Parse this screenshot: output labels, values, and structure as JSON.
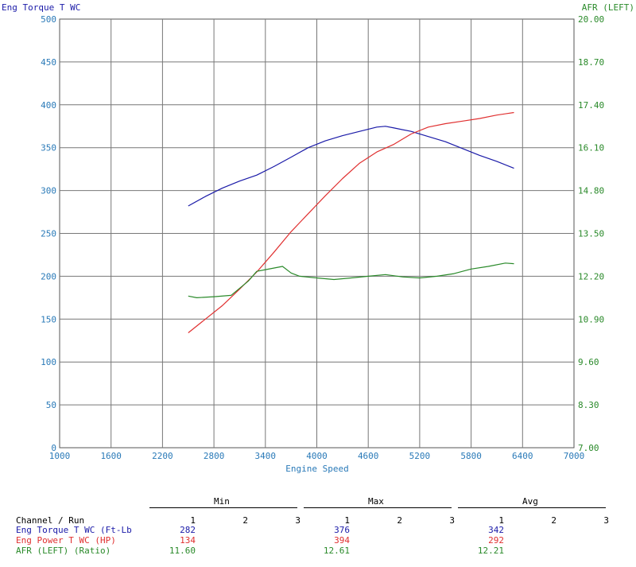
{
  "chart_data": {
    "type": "line",
    "title": "",
    "xlabel": "Engine Speed",
    "ylabel_left": "Eng Torque T WC",
    "ylabel_right": "AFR (LEFT)",
    "xlim": [
      1000,
      7000
    ],
    "xticks": [
      1000,
      1600,
      2200,
      2800,
      3400,
      4000,
      4600,
      5200,
      5800,
      6400,
      7000
    ],
    "ylim_left": [
      0,
      500
    ],
    "yticks_left": [
      0,
      50,
      100,
      150,
      200,
      250,
      300,
      350,
      400,
      450,
      500
    ],
    "ylim_right": [
      7.0,
      20.0
    ],
    "yticks_right": [
      "7.00",
      "8.30",
      "9.60",
      "10.90",
      "12.20",
      "13.50",
      "14.80",
      "16.10",
      "17.40",
      "18.70",
      "20.00"
    ],
    "grid": true,
    "series": [
      {
        "name": "Eng Torque T WC (Ft-Lb)",
        "axis": "left",
        "color": "#1a1aa8",
        "x": [
          2500,
          2700,
          2900,
          3100,
          3300,
          3500,
          3700,
          3900,
          4100,
          4300,
          4500,
          4700,
          4800,
          4900,
          5100,
          5300,
          5500,
          5700,
          5900,
          6100,
          6300
        ],
        "y": [
          282,
          293,
          303,
          311,
          318,
          328,
          339,
          350,
          358,
          364,
          369,
          374,
          375,
          373,
          369,
          363,
          357,
          349,
          341,
          334,
          326
        ]
      },
      {
        "name": "Eng Power T WC (HP)",
        "axis": "left",
        "color": "#e03030",
        "x": [
          2500,
          2700,
          2900,
          3100,
          3300,
          3500,
          3700,
          3900,
          4100,
          4300,
          4500,
          4700,
          4900,
          5100,
          5300,
          5500,
          5700,
          5900,
          6100,
          6300
        ],
        "y": [
          134,
          150,
          166,
          185,
          205,
          228,
          252,
          273,
          294,
          314,
          332,
          345,
          354,
          366,
          374,
          378,
          381,
          384,
          388,
          391
        ]
      },
      {
        "name": "AFR (LEFT) (Ratio)",
        "axis": "right",
        "color": "#2a8a2a",
        "x": [
          2500,
          2600,
          2800,
          3000,
          3200,
          3300,
          3400,
          3600,
          3700,
          3800,
          4000,
          4200,
          4400,
          4600,
          4800,
          5000,
          5200,
          5400,
          5600,
          5800,
          6000,
          6200,
          6300
        ],
        "y": [
          11.6,
          11.55,
          11.58,
          11.62,
          12.05,
          12.35,
          12.4,
          12.5,
          12.3,
          12.2,
          12.15,
          12.1,
          12.15,
          12.2,
          12.25,
          12.18,
          12.15,
          12.2,
          12.28,
          12.42,
          12.5,
          12.6,
          12.58
        ]
      }
    ]
  },
  "labels": {
    "left_axis_title": "Eng Torque T WC",
    "right_axis_title": "AFR (LEFT)",
    "x_axis_title": "Engine Speed"
  },
  "stats": {
    "channel_header": "Channel / Run",
    "groups": [
      {
        "title": "Min",
        "runs": [
          "1",
          "2",
          "3"
        ]
      },
      {
        "title": "Max",
        "runs": [
          "1",
          "2",
          "3"
        ]
      },
      {
        "title": "Avg",
        "runs": [
          "1",
          "2",
          "3"
        ]
      }
    ],
    "rows": [
      {
        "label": "Eng Torque T WC (Ft-Lb",
        "color": "#1a1aa8",
        "min": "282",
        "max": "376",
        "avg": "342"
      },
      {
        "label": "Eng Power T WC (HP)",
        "color": "#e03030",
        "min": "134",
        "max": "394",
        "avg": "292"
      },
      {
        "label": "AFR (LEFT) (Ratio)",
        "color": "#2a8a2a",
        "min": "11.60",
        "max": "12.61",
        "avg": "12.21"
      }
    ]
  }
}
